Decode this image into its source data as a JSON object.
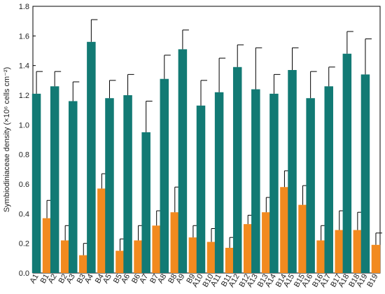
{
  "chart_data": {
    "type": "bar",
    "ylabel": "Symbiodiniaceae density (×10⁶ cells cm⁻²)",
    "ylim": [
      0,
      1.8
    ],
    "yticks": [
      "0.0",
      "0.2",
      "0.4",
      "0.6",
      "0.8",
      "1.0",
      "1.2",
      "1.4",
      "1.6",
      "1.8"
    ],
    "categories": [
      {
        "a": "A1",
        "b": "B1"
      },
      {
        "a": "A2",
        "b": "B2"
      },
      {
        "a": "A3",
        "b": "B3"
      },
      {
        "a": "A4",
        "b": "B4"
      },
      {
        "a": "A5",
        "b": "B5"
      },
      {
        "a": "A6",
        "b": "B6"
      },
      {
        "a": "A7",
        "b": "B7"
      },
      {
        "a": "A8",
        "b": "B8"
      },
      {
        "a": "A9",
        "b": "B9"
      },
      {
        "a": "A10",
        "b": "B10"
      },
      {
        "a": "A11",
        "b": "B11"
      },
      {
        "a": "A12",
        "b": "B12"
      },
      {
        "a": "A13",
        "b": "B13"
      },
      {
        "a": "A14",
        "b": "B14"
      },
      {
        "a": "A15",
        "b": "B15"
      },
      {
        "a": "A16",
        "b": "B16"
      },
      {
        "a": "A17",
        "b": "B17"
      },
      {
        "a": "A18",
        "b": "B18"
      },
      {
        "a": "A19",
        "b": "B19"
      }
    ],
    "series": [
      {
        "color": "#127a74",
        "values": [
          1.21,
          1.26,
          1.16,
          1.56,
          1.18,
          1.2,
          0.95,
          1.31,
          1.51,
          1.13,
          1.22,
          1.39,
          1.24,
          1.21,
          1.37,
          1.18,
          1.26,
          1.48,
          1.34
        ],
        "errors": [
          0.15,
          0.1,
          0.13,
          0.15,
          0.12,
          0.14,
          0.21,
          0.16,
          0.13,
          0.17,
          0.23,
          0.15,
          0.28,
          0.13,
          0.15,
          0.18,
          0.13,
          0.15,
          0.24
        ]
      },
      {
        "color": "#f28a1f",
        "values": [
          0.37,
          0.22,
          0.12,
          0.57,
          0.15,
          0.22,
          0.32,
          0.41,
          0.24,
          0.21,
          0.17,
          0.33,
          0.41,
          0.58,
          0.46,
          0.22,
          0.29,
          0.29,
          0.19
        ],
        "errors": [
          0.12,
          0.1,
          0.08,
          0.1,
          0.08,
          0.1,
          0.1,
          0.17,
          0.08,
          0.09,
          0.07,
          0.06,
          0.1,
          0.11,
          0.13,
          0.1,
          0.13,
          0.12,
          0.08
        ]
      }
    ],
    "grid": false,
    "legend": "none"
  }
}
